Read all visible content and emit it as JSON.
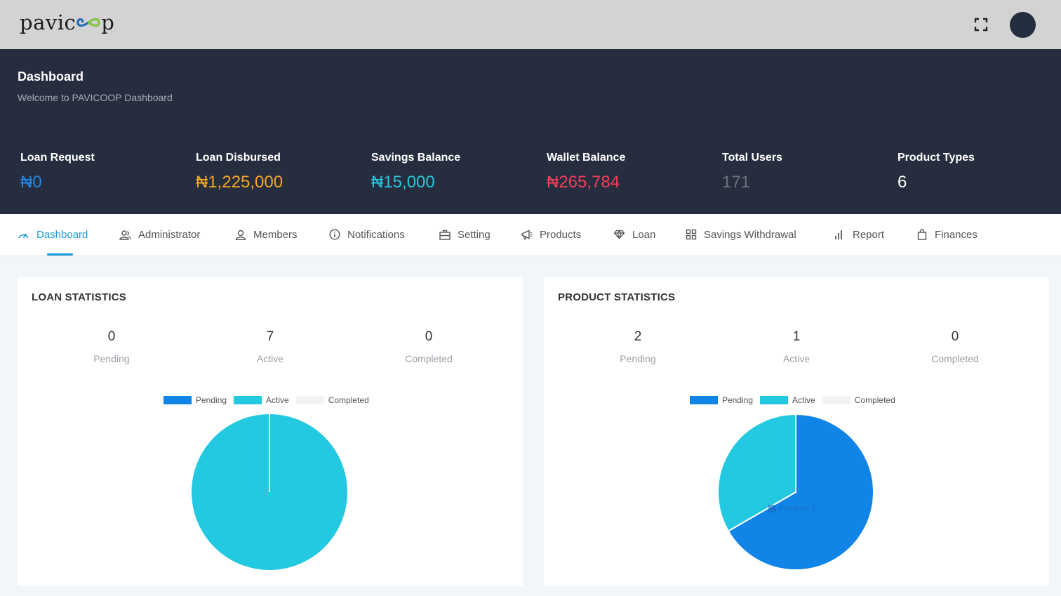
{
  "brand": {
    "logo_text_left": "pavic",
    "logo_text_right": "p"
  },
  "header": {
    "avatar_alt": "user avatar"
  },
  "hero": {
    "title": "Dashboard",
    "subtitle": "Welcome to PAVICOOP Dashboard",
    "stats": [
      {
        "label": "Loan Request",
        "value": "₦0",
        "color": "#1e88e5"
      },
      {
        "label": "Loan Disbursed",
        "value": "₦1,225,000",
        "color": "#f4a623"
      },
      {
        "label": "Savings Balance",
        "value": "₦15,000",
        "color": "#26c6da"
      },
      {
        "label": "Wallet Balance",
        "value": "₦265,784",
        "color": "#f53d5c"
      },
      {
        "label": "Total Users",
        "value": "171",
        "color": "#6c717c"
      },
      {
        "label": "Product Types",
        "value": "6",
        "color": "#ffffff"
      }
    ]
  },
  "nav": {
    "items": [
      {
        "label": "Dashboard",
        "icon": "gauge-icon",
        "active": true
      },
      {
        "label": "Administrator",
        "icon": "users-icon"
      },
      {
        "label": "Members",
        "icon": "user-icon"
      },
      {
        "label": "Notifications",
        "icon": "info-icon"
      },
      {
        "label": "Setting",
        "icon": "briefcase-icon"
      },
      {
        "label": "Products",
        "icon": "megaphone-icon"
      },
      {
        "label": "Loan",
        "icon": "diamond-icon"
      },
      {
        "label": "Savings Withdrawal",
        "icon": "grid-icon"
      },
      {
        "label": "Report",
        "icon": "bar-chart-icon"
      },
      {
        "label": "Finances",
        "icon": "shopping-bag-icon"
      }
    ]
  },
  "loan_statistics": {
    "title": "LOAN STATISTICS",
    "kpis": [
      {
        "value": "0",
        "label": "Pending"
      },
      {
        "value": "7",
        "label": "Active"
      },
      {
        "value": "0",
        "label": "Completed"
      }
    ]
  },
  "product_statistics": {
    "title": "PRODUCT STATISTICS",
    "kpis": [
      {
        "value": "2",
        "label": "Pending"
      },
      {
        "value": "1",
        "label": "Active"
      },
      {
        "value": "0",
        "label": "Completed"
      }
    ],
    "tooltip": {
      "label": "Pending",
      "value": "2"
    }
  },
  "colors": {
    "pending": "#1184e8",
    "active": "#23c9e0",
    "completed": "#f1f3f5",
    "accent": "#1a9ad6"
  },
  "chart_data": [
    {
      "type": "pie",
      "title": "",
      "categories": [
        "Pending",
        "Active",
        "Completed"
      ],
      "values": [
        0,
        7,
        0
      ],
      "colors": [
        "#1184e8",
        "#23c9e0",
        "#f1f3f5"
      ],
      "legend": "top"
    },
    {
      "type": "pie",
      "title": "",
      "categories": [
        "Pending",
        "Active",
        "Completed"
      ],
      "values": [
        2,
        1,
        0
      ],
      "colors": [
        "#1184e8",
        "#23c9e0",
        "#f1f3f5"
      ],
      "legend": "top"
    }
  ]
}
